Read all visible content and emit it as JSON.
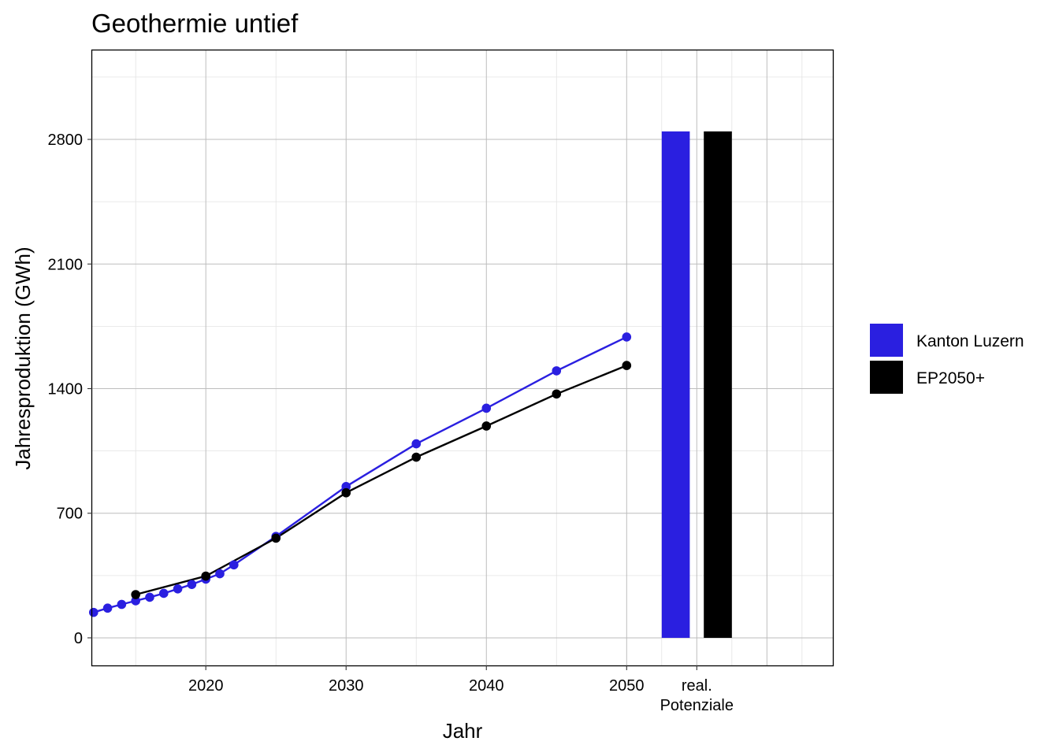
{
  "chart_data": {
    "type": "line",
    "title": "Geothermie untief",
    "xlabel": "Jahr",
    "ylabel": "Jahresproduktion (GWh)",
    "xlim": [
      2011.9,
      2064.7
    ],
    "ylim": [
      -155,
      3300
    ],
    "x_ticks": [
      2020,
      2030,
      2040,
      2050
    ],
    "y_ticks": [
      0,
      700,
      1400,
      2100,
      2800
    ],
    "grid": true,
    "legend_position": "right",
    "series": [
      {
        "name": "Kanton Luzern",
        "color": "#2a1fe0",
        "points": [
          [
            2012,
            143
          ],
          [
            2013,
            167
          ],
          [
            2014,
            188
          ],
          [
            2015,
            208
          ],
          [
            2016,
            228
          ],
          [
            2017,
            250
          ],
          [
            2018,
            275
          ],
          [
            2019,
            300
          ],
          [
            2020,
            330
          ],
          [
            2021,
            360
          ],
          [
            2022,
            410
          ],
          [
            2025,
            570
          ],
          [
            2030,
            850
          ],
          [
            2035,
            1090
          ],
          [
            2040,
            1290
          ],
          [
            2045,
            1500
          ],
          [
            2050,
            1690
          ]
        ]
      },
      {
        "name": "EP2050+",
        "color": "#000000",
        "points": [
          [
            2015,
            243
          ],
          [
            2020,
            347
          ],
          [
            2025,
            560
          ],
          [
            2030,
            815
          ],
          [
            2035,
            1015
          ],
          [
            2040,
            1190
          ],
          [
            2045,
            1370
          ],
          [
            2050,
            1530
          ]
        ]
      }
    ],
    "potential_category": {
      "label_line1": "real.",
      "label_line2": "Potenziale"
    },
    "potential_bars": [
      {
        "series": "Kanton Luzern",
        "value": 2845,
        "color": "#2a1fe0"
      },
      {
        "series": "EP2050+",
        "value": 2845,
        "color": "#000000"
      }
    ]
  }
}
